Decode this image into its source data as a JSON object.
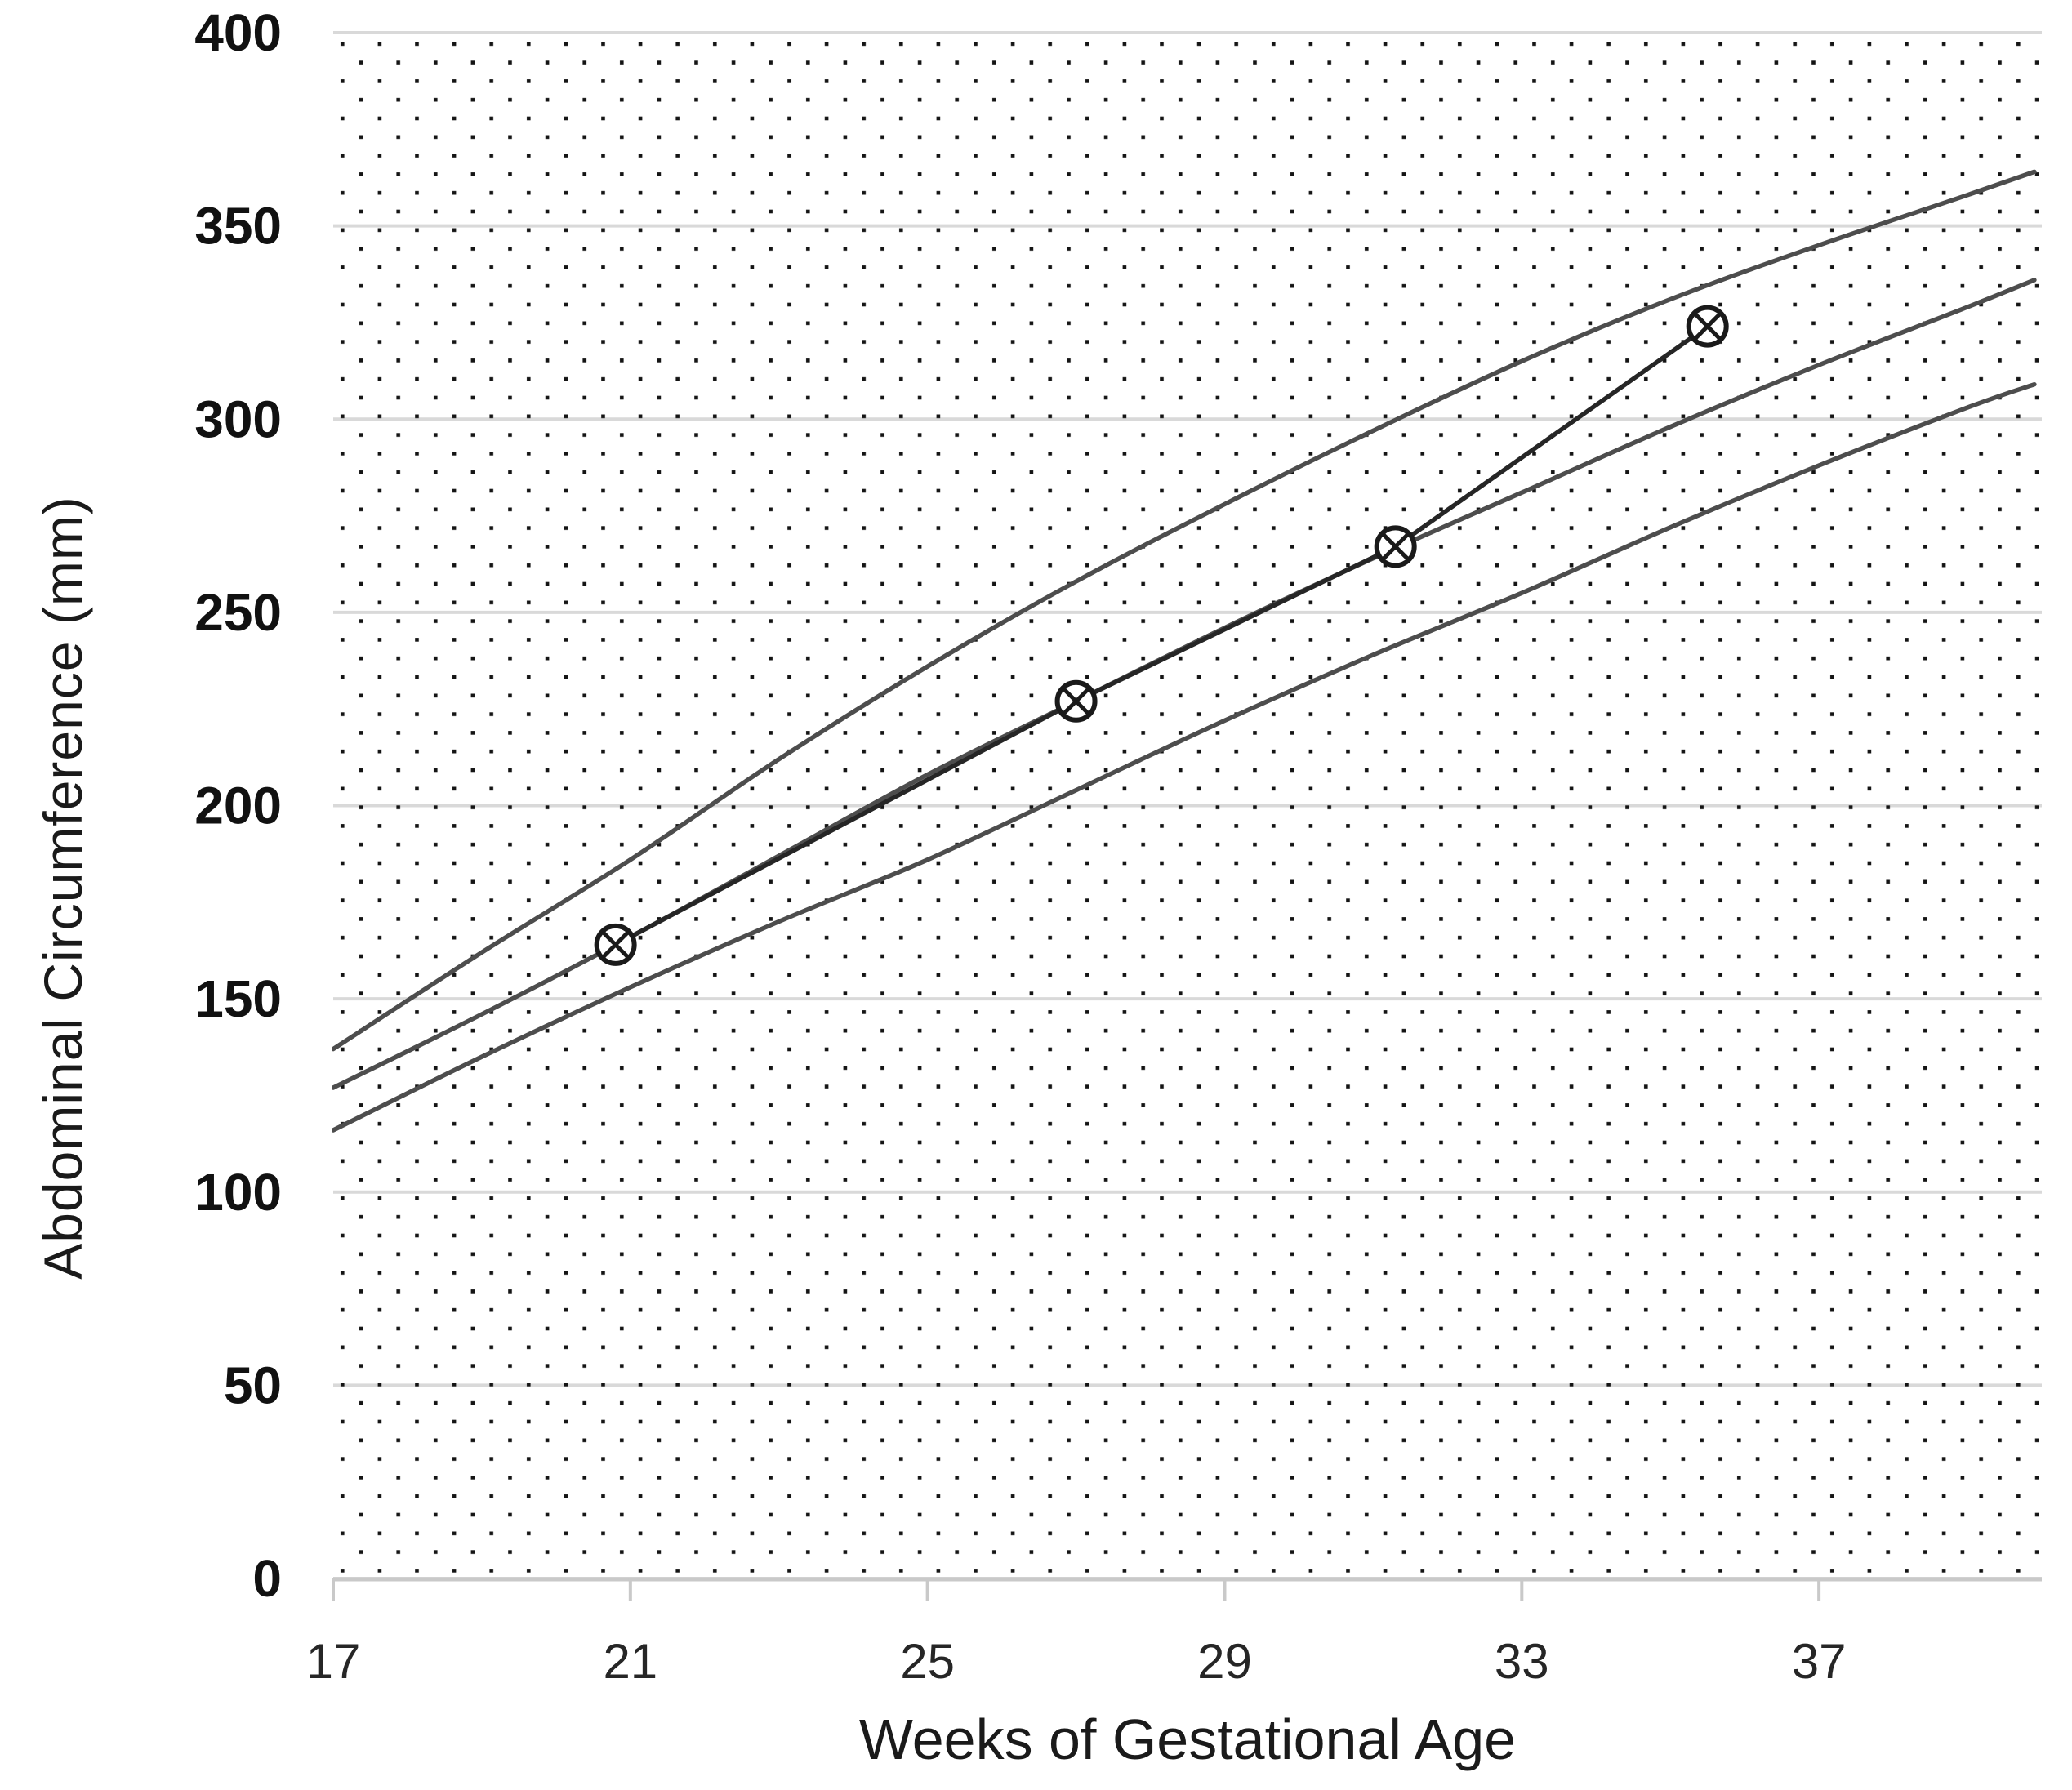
{
  "chart_data": {
    "type": "line",
    "title": "",
    "xlabel": "Weeks of Gestational Age",
    "ylabel": "Abdominal Circumference (mm)",
    "xlim": [
      17,
      40
    ],
    "ylim": [
      0,
      400
    ],
    "x_ticks": [
      17,
      21,
      25,
      29,
      33,
      37
    ],
    "y_ticks": [
      0,
      50,
      100,
      150,
      200,
      250,
      300,
      350,
      400
    ],
    "grid": "horizontal light-gray gridlines at every 50 mm; dotted lattice background over plot area",
    "legend_position": "none",
    "series": [
      {
        "name": "upper-reference-curve",
        "style": "smooth dark-gray curve",
        "points": [
          [
            17,
            137
          ],
          [
            19,
            162
          ],
          [
            21,
            186
          ],
          [
            23,
            212
          ],
          [
            25,
            236
          ],
          [
            27,
            258
          ],
          [
            29,
            278
          ],
          [
            31,
            297
          ],
          [
            33,
            315
          ],
          [
            35,
            331
          ],
          [
            37,
            345
          ],
          [
            39,
            358
          ],
          [
            39.9,
            364
          ]
        ]
      },
      {
        "name": "middle-reference-curve",
        "style": "smooth dark-gray curve",
        "points": [
          [
            17,
            127
          ],
          [
            19,
            146
          ],
          [
            21,
            166
          ],
          [
            23,
            187
          ],
          [
            25,
            208
          ],
          [
            27,
            227
          ],
          [
            29,
            246
          ],
          [
            31,
            264
          ],
          [
            33,
            281
          ],
          [
            35,
            298
          ],
          [
            37,
            314
          ],
          [
            39,
            329
          ],
          [
            39.9,
            336
          ]
        ]
      },
      {
        "name": "lower-reference-curve",
        "style": "smooth dark-gray curve",
        "points": [
          [
            17,
            116
          ],
          [
            19,
            135
          ],
          [
            21,
            153
          ],
          [
            23,
            170
          ],
          [
            25,
            186
          ],
          [
            27,
            204
          ],
          [
            29,
            222
          ],
          [
            31,
            239
          ],
          [
            33,
            255
          ],
          [
            35,
            272
          ],
          [
            37,
            288
          ],
          [
            39,
            303
          ],
          [
            39.9,
            309
          ]
        ]
      },
      {
        "name": "plotted-measurements",
        "style": "black straight segments with circled-X markers",
        "marker": "circled-x",
        "points": [
          [
            20.8,
            164
          ],
          [
            27,
            227
          ],
          [
            31.3,
            267
          ],
          [
            35.5,
            324
          ]
        ]
      }
    ],
    "colors": {
      "curve": "#4d4d4d",
      "patient_line": "#262626",
      "marker_stroke": "#1a1a1a",
      "marker_fill": "#ffffff",
      "gridline": "#d9d9d9",
      "axis_line": "#c9c9c9",
      "dots": "#141414",
      "text": "#1a1a1a"
    }
  }
}
